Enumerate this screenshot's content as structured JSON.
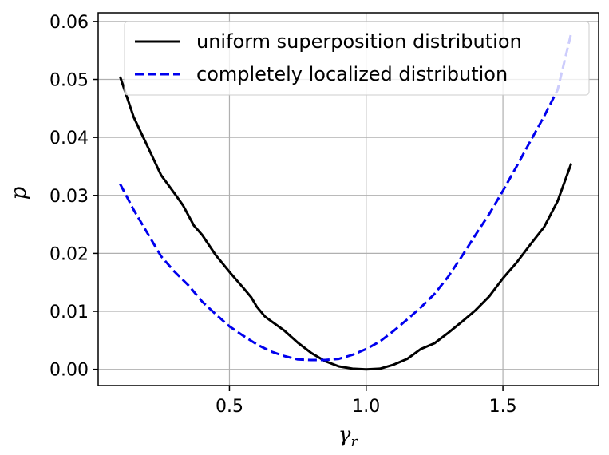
{
  "chart_data": {
    "type": "line",
    "xlabel": "γ",
    "xlabel_sub": "r",
    "ylabel": "p",
    "xlim": [
      0.02,
      1.85
    ],
    "ylim": [
      -0.0028,
      0.0615
    ],
    "xticks": [
      {
        "value": 0.5,
        "label": "0.5"
      },
      {
        "value": 1.0,
        "label": "1.0"
      },
      {
        "value": 1.5,
        "label": "1.5"
      }
    ],
    "yticks": [
      {
        "value": 0.0,
        "label": "0.00"
      },
      {
        "value": 0.01,
        "label": "0.01"
      },
      {
        "value": 0.02,
        "label": "0.02"
      },
      {
        "value": 0.03,
        "label": "0.03"
      },
      {
        "value": 0.04,
        "label": "0.04"
      },
      {
        "value": 0.05,
        "label": "0.05"
      },
      {
        "value": 0.06,
        "label": "0.06"
      }
    ],
    "grid": true,
    "legend_position": "top-right",
    "series": [
      {
        "name": "uniform superposition distribution",
        "color": "#000000",
        "dash": "solid",
        "x": [
          0.1,
          0.15,
          0.2,
          0.25,
          0.3,
          0.33,
          0.37,
          0.4,
          0.45,
          0.5,
          0.55,
          0.58,
          0.6,
          0.63,
          0.65,
          0.7,
          0.75,
          0.8,
          0.85,
          0.9,
          0.95,
          1.0,
          1.05,
          1.1,
          1.15,
          1.2,
          1.25,
          1.3,
          1.35,
          1.4,
          1.45,
          1.5,
          1.55,
          1.6,
          1.65,
          1.7,
          1.75
        ],
        "y": [
          0.0505,
          0.0435,
          0.0385,
          0.0335,
          0.0303,
          0.0283,
          0.0248,
          0.0232,
          0.0197,
          0.0168,
          0.0141,
          0.0124,
          0.0108,
          0.0091,
          0.0084,
          0.0067,
          0.0046,
          0.0028,
          0.0014,
          0.0005,
          0.0001,
          0.0,
          0.0001,
          0.0008,
          0.0018,
          0.0035,
          0.0045,
          0.0063,
          0.0082,
          0.0102,
          0.0126,
          0.0157,
          0.0184,
          0.0215,
          0.0245,
          0.029,
          0.0355
        ]
      },
      {
        "name": "completely localized distribution",
        "color": "#0000ee",
        "dash": "dashed",
        "x": [
          0.1,
          0.15,
          0.2,
          0.25,
          0.3,
          0.35,
          0.4,
          0.45,
          0.5,
          0.55,
          0.6,
          0.65,
          0.7,
          0.75,
          0.8,
          0.85,
          0.9,
          0.95,
          1.0,
          1.05,
          1.1,
          1.15,
          1.2,
          1.25,
          1.3,
          1.35,
          1.4,
          1.45,
          1.5,
          1.55,
          1.6,
          1.65,
          1.7,
          1.75
        ],
        "y": [
          0.032,
          0.0275,
          0.0235,
          0.0195,
          0.0168,
          0.0145,
          0.0117,
          0.0095,
          0.0074,
          0.0058,
          0.0043,
          0.0031,
          0.0023,
          0.0017,
          0.0016,
          0.0016,
          0.0018,
          0.0025,
          0.0035,
          0.0048,
          0.0066,
          0.0086,
          0.0107,
          0.013,
          0.016,
          0.0195,
          0.0232,
          0.0268,
          0.0308,
          0.035,
          0.0393,
          0.0436,
          0.0482,
          0.058
        ]
      }
    ]
  }
}
